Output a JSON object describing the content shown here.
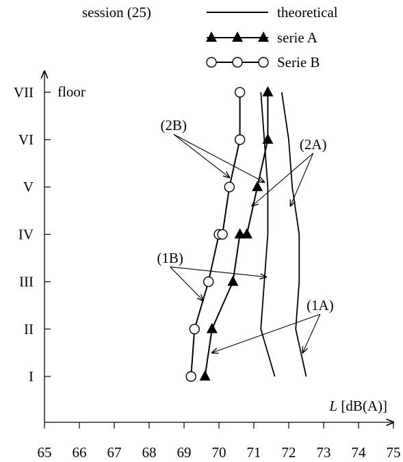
{
  "chart_data": {
    "type": "line",
    "legend": {
      "title": "session (25)",
      "placement": "top-right",
      "entries": [
        {
          "label": "theoretical",
          "marker": "none"
        },
        {
          "label": "serie A",
          "marker": "filled-triangle"
        },
        {
          "label": "Serie B",
          "marker": "open-circle"
        }
      ]
    },
    "ylabel": "floor",
    "xlabel_italic": "L",
    "xlabel_rest": " [dB(A)]",
    "xlim": [
      65,
      75
    ],
    "x_ticks": [
      "65",
      "66",
      "67",
      "68",
      "69",
      "70",
      "71",
      "72",
      "73",
      "74",
      "75"
    ],
    "y_categories": [
      "I",
      "II",
      "III",
      "IV",
      "V",
      "VI",
      "VII"
    ],
    "series": [
      {
        "name": "serie A",
        "marker": "filled-triangle",
        "points": [
          {
            "x": 69.6,
            "y": 1
          },
          {
            "x": 69.8,
            "y": 2
          },
          {
            "x": 70.4,
            "y": 3
          },
          {
            "x": 70.6,
            "y": 4
          },
          {
            "x": 70.8,
            "y": 4
          },
          {
            "x": 71.1,
            "y": 5
          },
          {
            "x": 71.4,
            "y": 6
          },
          {
            "x": 71.4,
            "y": 7
          }
        ]
      },
      {
        "name": "Serie B",
        "marker": "open-circle",
        "points": [
          {
            "x": 69.2,
            "y": 1
          },
          {
            "x": 69.3,
            "y": 2
          },
          {
            "x": 69.7,
            "y": 3
          },
          {
            "x": 70.0,
            "y": 4
          },
          {
            "x": 70.1,
            "y": 4
          },
          {
            "x": 70.3,
            "y": 5
          },
          {
            "x": 70.6,
            "y": 6
          },
          {
            "x": 70.6,
            "y": 7
          }
        ]
      },
      {
        "name": "theoretical",
        "marker": "none",
        "points": [
          {
            "x": 71.6,
            "y": 1
          },
          {
            "x": 71.2,
            "y": 2
          },
          {
            "x": 71.3,
            "y": 3
          },
          {
            "x": 71.4,
            "y": 4
          },
          {
            "x": 71.4,
            "y": 5
          },
          {
            "x": 71.3,
            "y": 6
          },
          {
            "x": 71.2,
            "y": 7
          }
        ]
      },
      {
        "name": "theoretical",
        "marker": "none",
        "points": [
          {
            "x": 72.5,
            "y": 1
          },
          {
            "x": 72.2,
            "y": 2
          },
          {
            "x": 72.3,
            "y": 3
          },
          {
            "x": 72.3,
            "y": 4
          },
          {
            "x": 72.1,
            "y": 5
          },
          {
            "x": 72.0,
            "y": 6
          },
          {
            "x": 71.8,
            "y": 7
          }
        ]
      }
    ],
    "annotations": [
      {
        "text": "(2B)",
        "anchor": {
          "x": 68.7,
          "y": 6.2
        },
        "targets": [
          {
            "x": 70.3,
            "y": 5.2
          },
          {
            "x": 71.3,
            "y": 5.1
          }
        ]
      },
      {
        "text": "(2A)",
        "anchor": {
          "x": 72.7,
          "y": 5.8
        },
        "targets": [
          {
            "x": 70.95,
            "y": 4.6
          },
          {
            "x": 72.05,
            "y": 4.6
          }
        ]
      },
      {
        "text": "(1B)",
        "anchor": {
          "x": 68.6,
          "y": 3.4
        },
        "targets": [
          {
            "x": 69.55,
            "y": 2.6
          },
          {
            "x": 71.35,
            "y": 3.1
          }
        ]
      },
      {
        "text": "(1A)",
        "anchor": {
          "x": 72.9,
          "y": 2.4
        },
        "targets": [
          {
            "x": 69.8,
            "y": 1.5
          },
          {
            "x": 72.4,
            "y": 1.5
          }
        ]
      }
    ]
  }
}
